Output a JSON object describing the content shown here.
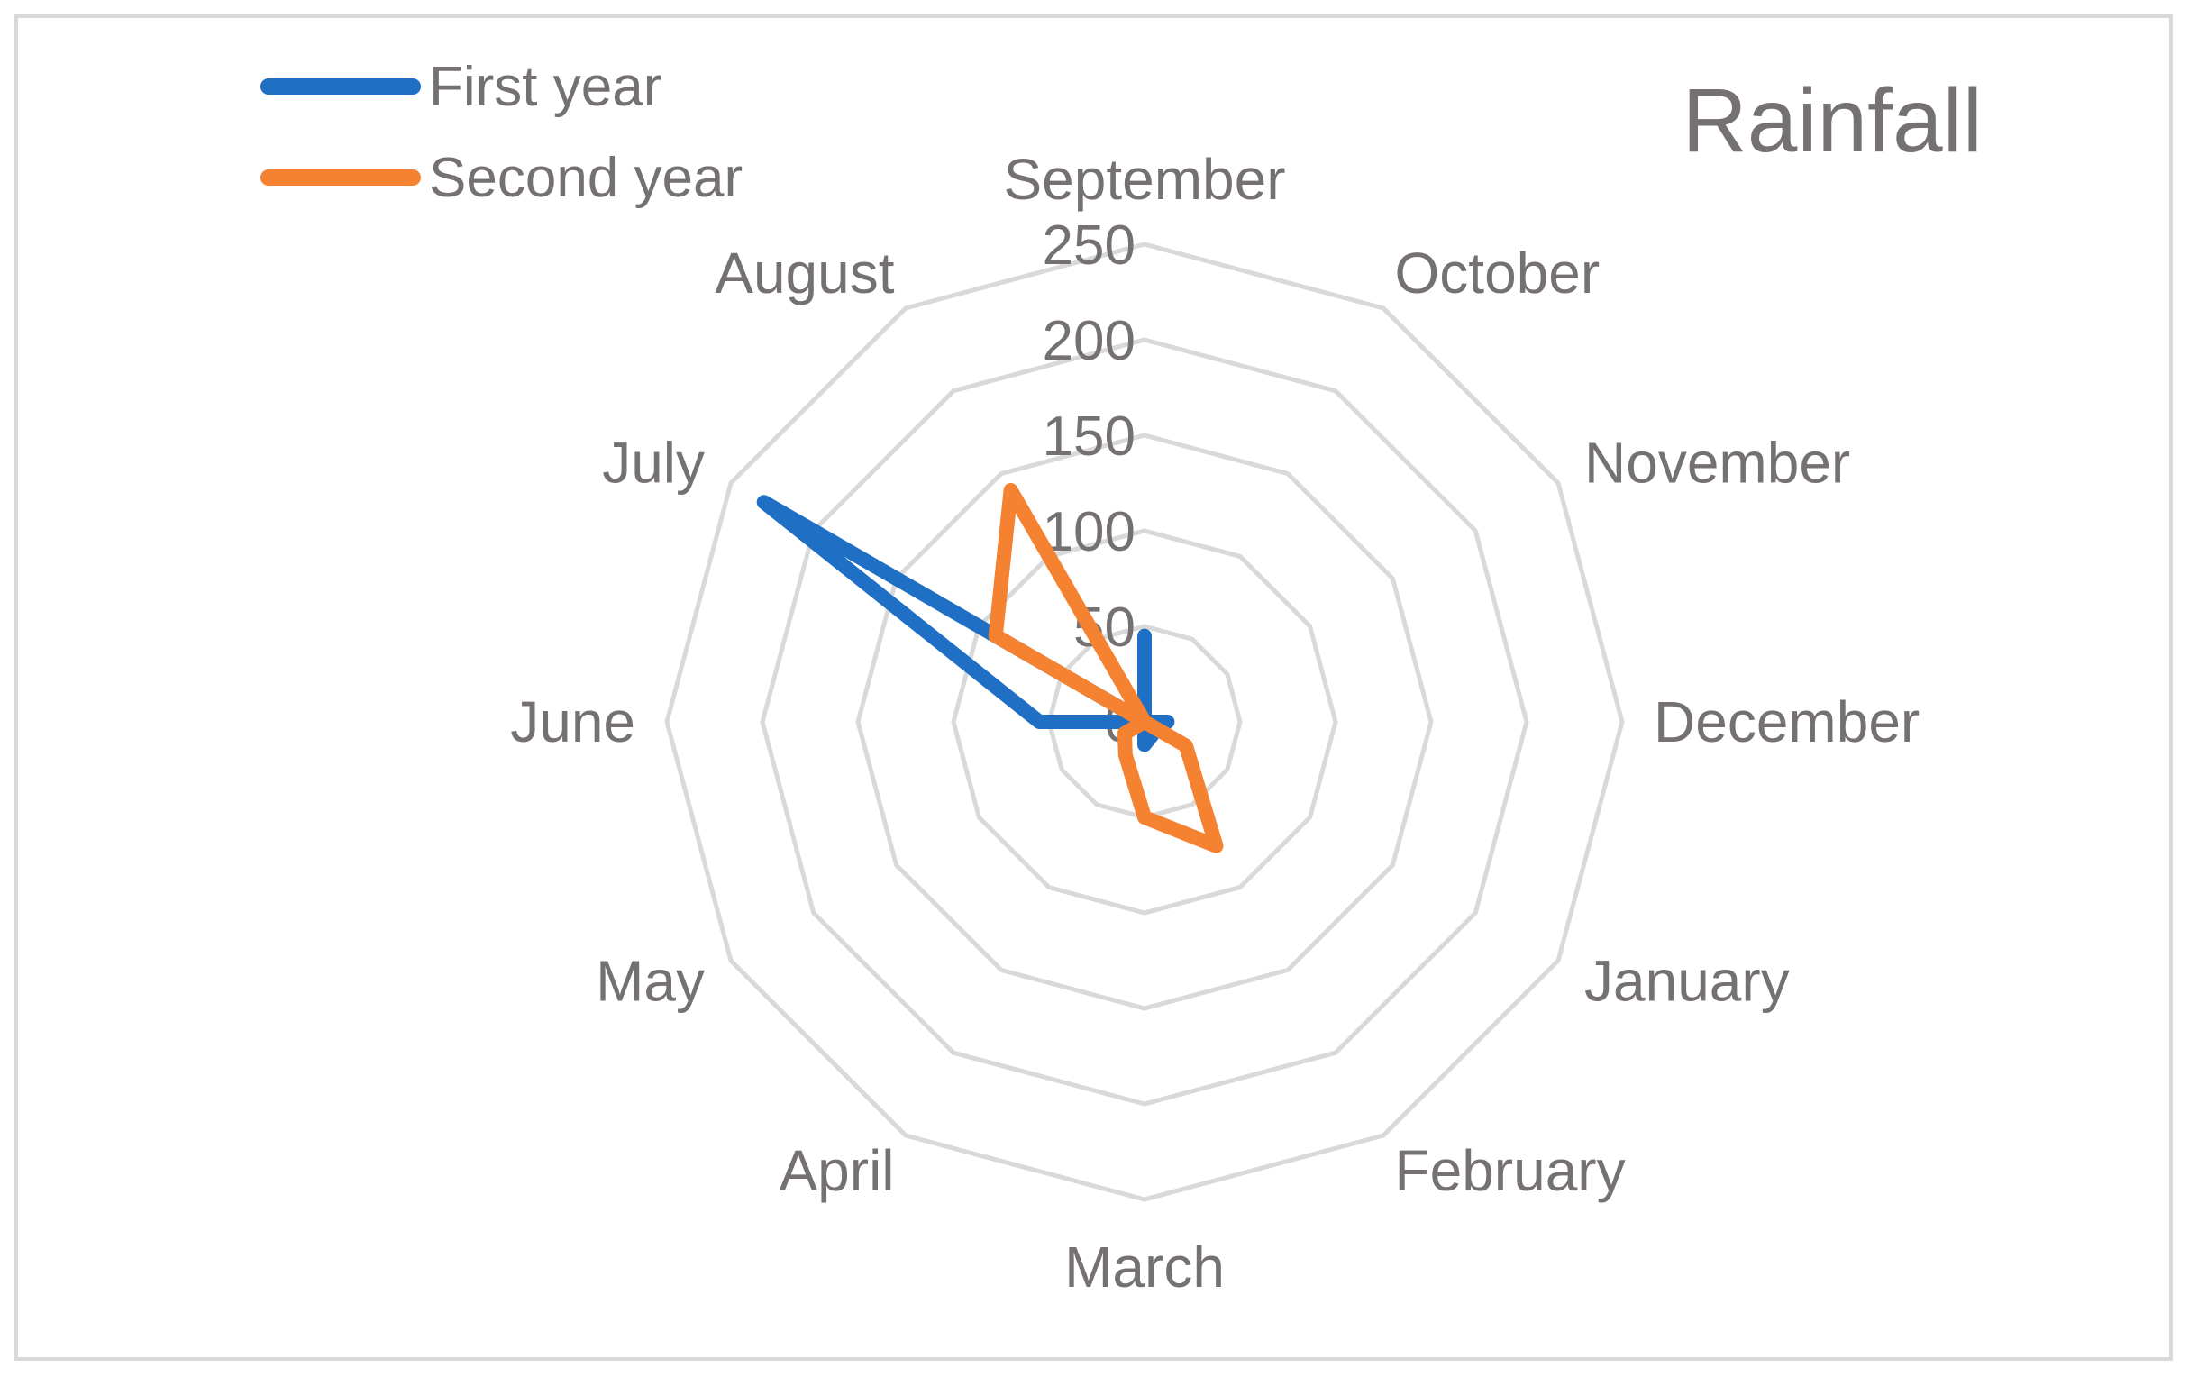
{
  "chart_data": {
    "type": "radar",
    "title": "Rainfall",
    "categories": [
      "September",
      "October",
      "November",
      "December",
      "January",
      "February",
      "March",
      "April",
      "May",
      "June",
      "July",
      "August"
    ],
    "radial_ticks": [
      "0",
      "50",
      "100",
      "150",
      "200",
      "250"
    ],
    "rlim": [
      0,
      250
    ],
    "grid": true,
    "legend_position": "top-left",
    "series": [
      {
        "name": "First year",
        "color": "#1f6fc5",
        "values": [
          45,
          0,
          0,
          12,
          0,
          8,
          12,
          0,
          0,
          55,
          230,
          0
        ]
      },
      {
        "name": "Second year",
        "color": "#f58231",
        "values": [
          0,
          0,
          0,
          0,
          25,
          75,
          50,
          20,
          12,
          0,
          90,
          140
        ]
      }
    ]
  }
}
